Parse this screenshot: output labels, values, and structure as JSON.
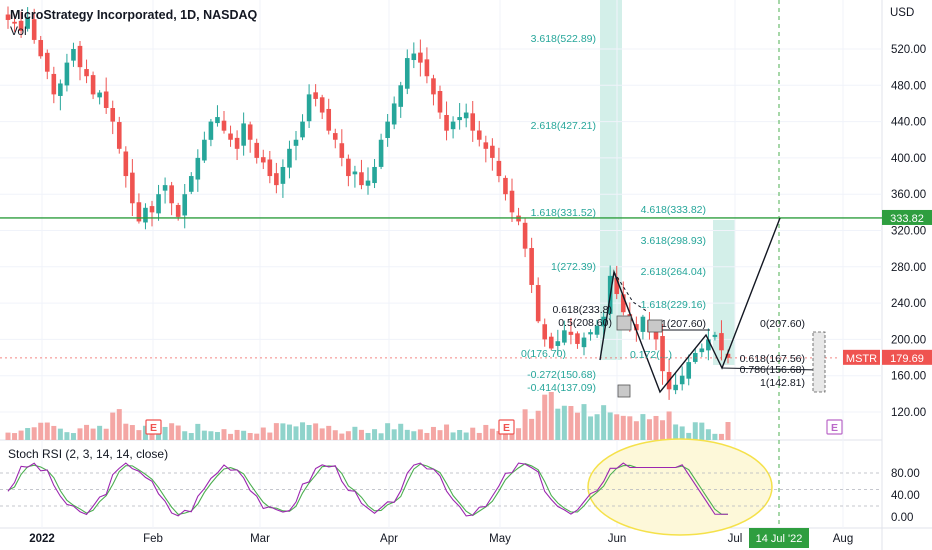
{
  "header": {
    "title": "MicroStrategy Incorporated, 1D, NASDAQ",
    "volume_label": "Vol",
    "currency": "USD"
  },
  "rsi": {
    "label": "Stoch RSI (2, 3, 14, 14, close)"
  },
  "colors": {
    "up": "#26a69a",
    "down": "#ef5350",
    "vol_up": "#8fd3cb",
    "vol_down": "#f4a6a4",
    "hline": "#2e9e3f",
    "fib_text": "#26a69a",
    "k_line": "#9c27b0",
    "d_line": "#4caf50",
    "ellipse": "#f5e98a"
  },
  "chart_data": {
    "type": "candlestick",
    "symbol": "MSTR",
    "interval": "1D",
    "y_axis": {
      "ticks": [
        120,
        160,
        200,
        240,
        280,
        320,
        360,
        400,
        440,
        480,
        520
      ],
      "tick_labels": [
        "120.00",
        "160.00",
        "200.00",
        "240.00",
        "280.00",
        "320.00",
        "360.00",
        "400.00",
        "440.00",
        "480.00",
        "520.00"
      ],
      "range": [
        100,
        560
      ]
    },
    "x_axis": {
      "labels": [
        "2022",
        "Feb",
        "Mar",
        "Apr",
        "May",
        "Jun",
        "Jul",
        "Aug"
      ],
      "highlight_label": "14 Jul '22"
    },
    "last_price": {
      "label": "MSTR",
      "value": "179.69"
    },
    "horizontal_line": {
      "value": 333.82,
      "label": "333.82"
    },
    "closes": [
      552,
      548,
      540,
      555,
      530,
      512,
      495,
      470,
      482,
      505,
      520,
      500,
      490,
      470,
      472,
      455,
      440,
      410,
      380,
      350,
      330,
      345,
      340,
      360,
      370,
      350,
      335,
      360,
      380,
      400,
      420,
      440,
      445,
      430,
      420,
      410,
      438,
      420,
      400,
      395,
      380,
      370,
      390,
      410,
      420,
      440,
      470,
      465,
      450,
      430,
      420,
      400,
      380,
      385,
      370,
      375,
      390,
      420,
      440,
      460,
      480,
      510,
      515,
      505,
      490,
      470,
      450,
      430,
      440,
      445,
      450,
      430,
      420,
      410,
      400,
      380,
      360,
      340,
      330,
      300,
      260,
      220,
      200,
      190,
      198,
      210,
      205,
      195,
      202,
      208,
      215,
      225,
      270,
      250,
      230,
      220,
      210,
      225,
      208,
      200,
      165,
      145,
      150,
      160,
      175,
      185,
      190,
      200,
      205,
      188,
      179.69
    ],
    "fib_left": {
      "levels": [
        "3.618(522.89)",
        "2.618(427.21)",
        "1.618(331.52)",
        "1(272.39)",
        "0.618(233.8)",
        "0.5(208.60)",
        "0(176.70)",
        "-0.272(150.68)",
        "-0.414(137.09)"
      ]
    },
    "fib_right": {
      "levels": [
        "4.618(333.82)",
        "3.618(298.93)",
        "2.618(264.04)",
        "1.618(229.16)",
        "1(207.60)",
        "0.172(...)",
        "0(207.60)",
        "0.618(167.56)",
        "0.786(156.68)",
        "1(142.81)"
      ]
    },
    "rsi_axis": {
      "ticks": [
        0,
        40,
        80
      ],
      "tick_labels": [
        "0.00",
        "40.00",
        "80.00"
      ]
    },
    "earnings_marker": "E"
  }
}
